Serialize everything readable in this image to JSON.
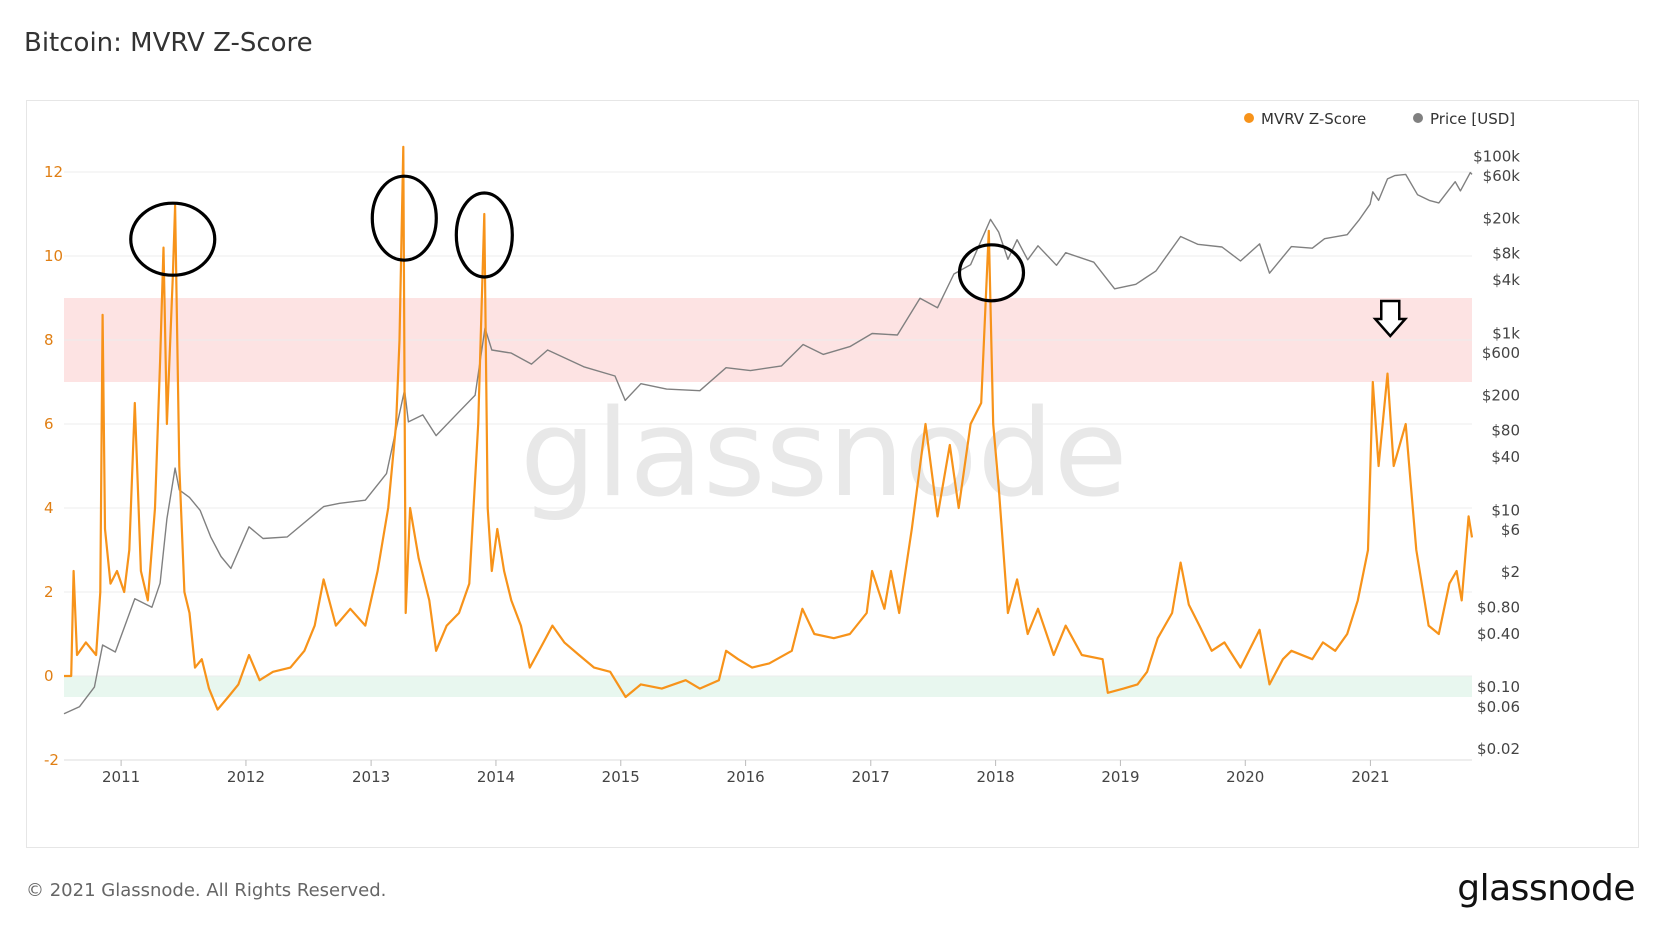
{
  "page": {
    "title": "Bitcoin: MVRV Z-Score",
    "footer": "© 2021 Glassnode. All Rights Reserved.",
    "brand": "glassnode",
    "watermark": "glassnode"
  },
  "chart_data": {
    "type": "line",
    "title": "Bitcoin: MVRV Z-Score",
    "xlabel": "",
    "ylabel": "",
    "x_range": [
      "2010-07-18",
      "2021-10-25"
    ],
    "x_ticks": [
      "2011",
      "2012",
      "2013",
      "2014",
      "2015",
      "2016",
      "2017",
      "2018",
      "2019",
      "2020",
      "2021"
    ],
    "y_left": {
      "range": [
        -2,
        13
      ],
      "ticks": [
        -2,
        0,
        2,
        4,
        6,
        8,
        10,
        12
      ],
      "color": "#f7931a"
    },
    "y_right": {
      "scale": "log",
      "range": [
        0.015,
        200000
      ],
      "ticks": [
        {
          "v": 0.02,
          "label": "$0.02"
        },
        {
          "v": 0.06,
          "label": "$0.06"
        },
        {
          "v": 0.1,
          "label": "$0.10"
        },
        {
          "v": 0.4,
          "label": "$0.40"
        },
        {
          "v": 0.8,
          "label": "$0.80"
        },
        {
          "v": 2,
          "label": "$2"
        },
        {
          "v": 6,
          "label": "$6"
        },
        {
          "v": 10,
          "label": "$10"
        },
        {
          "v": 40,
          "label": "$40"
        },
        {
          "v": 80,
          "label": "$80"
        },
        {
          "v": 200,
          "label": "$200"
        },
        {
          "v": 600,
          "label": "$600"
        },
        {
          "v": 1000,
          "label": "$1k"
        },
        {
          "v": 4000,
          "label": "$4k"
        },
        {
          "v": 8000,
          "label": "$8k"
        },
        {
          "v": 20000,
          "label": "$20k"
        },
        {
          "v": 60000,
          "label": "$60k"
        },
        {
          "v": 100000,
          "label": "$100k"
        }
      ]
    },
    "bands": [
      {
        "name": "",
        "from": 7,
        "to": 9,
        "color": "#fde3e3"
      },
      {
        "name": "",
        "from": -0.5,
        "to": 0,
        "color": "#e8f7ef"
      }
    ],
    "legend": {
      "placement": "top-right",
      "items": [
        {
          "label": "MVRV Z-Score",
          "color": "#f7931a"
        },
        {
          "label": "Price [USD]",
          "color": "#808080"
        }
      ]
    },
    "grid": true,
    "series": [
      {
        "name": "MVRV Z-Score",
        "axis": "left",
        "color": "#f7931a",
        "points": [
          [
            "2010-07-18",
            0
          ],
          [
            "2010-08-08",
            0
          ],
          [
            "2010-08-15",
            2.5
          ],
          [
            "2010-08-25",
            0.5
          ],
          [
            "2010-09-20",
            0.8
          ],
          [
            "2010-10-20",
            0.5
          ],
          [
            "2010-11-01",
            2.0
          ],
          [
            "2010-11-08",
            8.6
          ],
          [
            "2010-11-15",
            3.5
          ],
          [
            "2010-12-01",
            2.2
          ],
          [
            "2010-12-20",
            2.5
          ],
          [
            "2011-01-10",
            2.0
          ],
          [
            "2011-01-25",
            3.0
          ],
          [
            "2011-02-10",
            6.5
          ],
          [
            "2011-02-28",
            2.5
          ],
          [
            "2011-03-20",
            1.8
          ],
          [
            "2011-04-10",
            4.0
          ],
          [
            "2011-04-25",
            7.5
          ],
          [
            "2011-05-05",
            10.2
          ],
          [
            "2011-05-15",
            6.0
          ],
          [
            "2011-06-01",
            9.5
          ],
          [
            "2011-06-08",
            11.2
          ],
          [
            "2011-06-20",
            5.0
          ],
          [
            "2011-07-05",
            2.0
          ],
          [
            "2011-07-20",
            1.5
          ],
          [
            "2011-08-05",
            0.2
          ],
          [
            "2011-08-25",
            0.4
          ],
          [
            "2011-09-15",
            -0.3
          ],
          [
            "2011-10-10",
            -0.8
          ],
          [
            "2011-11-10",
            -0.5
          ],
          [
            "2011-12-10",
            -0.2
          ],
          [
            "2012-01-10",
            0.5
          ],
          [
            "2012-02-10",
            -0.1
          ],
          [
            "2012-03-20",
            0.1
          ],
          [
            "2012-05-10",
            0.2
          ],
          [
            "2012-06-20",
            0.6
          ],
          [
            "2012-07-20",
            1.2
          ],
          [
            "2012-08-15",
            2.3
          ],
          [
            "2012-09-20",
            1.2
          ],
          [
            "2012-11-01",
            1.6
          ],
          [
            "2012-12-15",
            1.2
          ],
          [
            "2013-01-20",
            2.5
          ],
          [
            "2013-02-20",
            4.0
          ],
          [
            "2013-03-15",
            6.0
          ],
          [
            "2013-03-25",
            8.0
          ],
          [
            "2013-04-05",
            12.6
          ],
          [
            "2013-04-12",
            1.5
          ],
          [
            "2013-04-25",
            4.0
          ],
          [
            "2013-05-20",
            2.8
          ],
          [
            "2013-06-20",
            1.8
          ],
          [
            "2013-07-10",
            0.6
          ],
          [
            "2013-08-10",
            1.2
          ],
          [
            "2013-09-15",
            1.5
          ],
          [
            "2013-10-15",
            2.2
          ],
          [
            "2013-11-10",
            6.0
          ],
          [
            "2013-11-28",
            11.0
          ],
          [
            "2013-12-08",
            4.0
          ],
          [
            "2013-12-20",
            2.5
          ],
          [
            "2014-01-05",
            3.5
          ],
          [
            "2014-01-25",
            2.5
          ],
          [
            "2014-02-15",
            1.8
          ],
          [
            "2014-03-15",
            1.2
          ],
          [
            "2014-04-10",
            0.2
          ],
          [
            "2014-05-20",
            0.8
          ],
          [
            "2014-06-15",
            1.2
          ],
          [
            "2014-07-20",
            0.8
          ],
          [
            "2014-09-01",
            0.5
          ],
          [
            "2014-10-15",
            0.2
          ],
          [
            "2014-12-01",
            0.1
          ],
          [
            "2015-01-15",
            -0.5
          ],
          [
            "2015-03-01",
            -0.2
          ],
          [
            "2015-05-01",
            -0.3
          ],
          [
            "2015-07-10",
            -0.1
          ],
          [
            "2015-08-20",
            -0.3
          ],
          [
            "2015-10-15",
            -0.1
          ],
          [
            "2015-11-05",
            0.6
          ],
          [
            "2015-12-10",
            0.4
          ],
          [
            "2016-01-20",
            0.2
          ],
          [
            "2016-03-10",
            0.3
          ],
          [
            "2016-05-15",
            0.6
          ],
          [
            "2016-06-15",
            1.6
          ],
          [
            "2016-07-20",
            1.0
          ],
          [
            "2016-09-15",
            0.9
          ],
          [
            "2016-11-01",
            1.0
          ],
          [
            "2016-12-20",
            1.5
          ],
          [
            "2017-01-05",
            2.5
          ],
          [
            "2017-02-10",
            1.6
          ],
          [
            "2017-03-01",
            2.5
          ],
          [
            "2017-03-25",
            1.5
          ],
          [
            "2017-05-01",
            3.5
          ],
          [
            "2017-06-10",
            6.0
          ],
          [
            "2017-07-15",
            3.8
          ],
          [
            "2017-08-20",
            5.5
          ],
          [
            "2017-09-15",
            4.0
          ],
          [
            "2017-10-20",
            6.0
          ],
          [
            "2017-11-20",
            6.5
          ],
          [
            "2017-12-12",
            10.6
          ],
          [
            "2017-12-25",
            6.0
          ],
          [
            "2018-01-10",
            4.5
          ],
          [
            "2018-02-06",
            1.5
          ],
          [
            "2018-03-05",
            2.3
          ],
          [
            "2018-04-05",
            1.0
          ],
          [
            "2018-05-05",
            1.6
          ],
          [
            "2018-06-20",
            0.5
          ],
          [
            "2018-07-25",
            1.2
          ],
          [
            "2018-09-10",
            0.5
          ],
          [
            "2018-11-10",
            0.4
          ],
          [
            "2018-11-25",
            -0.4
          ],
          [
            "2019-01-10",
            -0.3
          ],
          [
            "2019-02-20",
            -0.2
          ],
          [
            "2019-03-20",
            0.1
          ],
          [
            "2019-04-20",
            0.9
          ],
          [
            "2019-06-01",
            1.5
          ],
          [
            "2019-06-26",
            2.7
          ],
          [
            "2019-07-20",
            1.7
          ],
          [
            "2019-08-20",
            1.2
          ],
          [
            "2019-09-25",
            0.6
          ],
          [
            "2019-11-01",
            0.8
          ],
          [
            "2019-12-18",
            0.2
          ],
          [
            "2020-02-12",
            1.1
          ],
          [
            "2020-03-12",
            -0.2
          ],
          [
            "2020-04-20",
            0.4
          ],
          [
            "2020-05-15",
            0.6
          ],
          [
            "2020-07-15",
            0.4
          ],
          [
            "2020-08-15",
            0.8
          ],
          [
            "2020-09-20",
            0.6
          ],
          [
            "2020-10-25",
            1.0
          ],
          [
            "2020-11-25",
            1.8
          ],
          [
            "2020-12-25",
            3.0
          ],
          [
            "2021-01-08",
            7.0
          ],
          [
            "2021-01-25",
            5.0
          ],
          [
            "2021-02-20",
            7.2
          ],
          [
            "2021-03-10",
            5.0
          ],
          [
            "2021-04-14",
            6.0
          ],
          [
            "2021-05-15",
            3.0
          ],
          [
            "2021-06-20",
            1.2
          ],
          [
            "2021-07-20",
            1.0
          ],
          [
            "2021-08-20",
            2.2
          ],
          [
            "2021-09-10",
            2.5
          ],
          [
            "2021-09-25",
            1.8
          ],
          [
            "2021-10-15",
            3.8
          ],
          [
            "2021-10-25",
            3.3
          ]
        ]
      },
      {
        "name": "Price [USD]",
        "axis": "right",
        "color": "#808080",
        "points": [
          [
            "2010-07-18",
            0.05
          ],
          [
            "2010-09-01",
            0.06
          ],
          [
            "2010-10-15",
            0.1
          ],
          [
            "2010-11-08",
            0.3
          ],
          [
            "2010-12-15",
            0.25
          ],
          [
            "2011-02-10",
            1.0
          ],
          [
            "2011-04-01",
            0.8
          ],
          [
            "2011-04-25",
            1.5
          ],
          [
            "2011-05-15",
            8
          ],
          [
            "2011-06-08",
            30
          ],
          [
            "2011-06-20",
            17
          ],
          [
            "2011-07-20",
            14
          ],
          [
            "2011-08-20",
            10
          ],
          [
            "2011-09-20",
            5
          ],
          [
            "2011-10-20",
            3
          ],
          [
            "2011-11-18",
            2.2
          ],
          [
            "2012-01-10",
            6.5
          ],
          [
            "2012-02-20",
            4.8
          ],
          [
            "2012-05-01",
            5
          ],
          [
            "2012-08-15",
            11
          ],
          [
            "2012-10-01",
            12
          ],
          [
            "2012-12-15",
            13
          ],
          [
            "2013-02-15",
            26
          ],
          [
            "2013-04-09",
            230
          ],
          [
            "2013-04-20",
            100
          ],
          [
            "2013-06-01",
            120
          ],
          [
            "2013-07-10",
            70
          ],
          [
            "2013-09-15",
            130
          ],
          [
            "2013-11-01",
            200
          ],
          [
            "2013-11-30",
            1150
          ],
          [
            "2013-12-20",
            650
          ],
          [
            "2014-02-15",
            600
          ],
          [
            "2014-04-15",
            450
          ],
          [
            "2014-06-01",
            650
          ],
          [
            "2014-09-15",
            420
          ],
          [
            "2014-12-15",
            330
          ],
          [
            "2015-01-14",
            175
          ],
          [
            "2015-03-01",
            270
          ],
          [
            "2015-05-15",
            235
          ],
          [
            "2015-08-20",
            225
          ],
          [
            "2015-11-05",
            410
          ],
          [
            "2016-01-15",
            380
          ],
          [
            "2016-04-15",
            430
          ],
          [
            "2016-06-17",
            750
          ],
          [
            "2016-08-15",
            580
          ],
          [
            "2016-11-01",
            710
          ],
          [
            "2017-01-05",
            1000
          ],
          [
            "2017-03-20",
            960
          ],
          [
            "2017-05-25",
            2500
          ],
          [
            "2017-07-15",
            1950
          ],
          [
            "2017-09-01",
            4700
          ],
          [
            "2017-10-20",
            6000
          ],
          [
            "2017-12-17",
            19500
          ],
          [
            "2018-01-10",
            14000
          ],
          [
            "2018-02-06",
            6900
          ],
          [
            "2018-03-05",
            11500
          ],
          [
            "2018-04-05",
            6800
          ],
          [
            "2018-05-05",
            9800
          ],
          [
            "2018-06-28",
            5900
          ],
          [
            "2018-07-25",
            8200
          ],
          [
            "2018-10-15",
            6400
          ],
          [
            "2018-12-15",
            3200
          ],
          [
            "2019-02-15",
            3600
          ],
          [
            "2019-04-15",
            5100
          ],
          [
            "2019-06-26",
            12500
          ],
          [
            "2019-08-15",
            10200
          ],
          [
            "2019-10-25",
            9500
          ],
          [
            "2019-12-18",
            6600
          ],
          [
            "2020-02-12",
            10300
          ],
          [
            "2020-03-12",
            4800
          ],
          [
            "2020-05-15",
            9600
          ],
          [
            "2020-07-15",
            9200
          ],
          [
            "2020-08-20",
            11800
          ],
          [
            "2020-10-25",
            13100
          ],
          [
            "2020-11-30",
            19500
          ],
          [
            "2020-12-31",
            29000
          ],
          [
            "2021-01-08",
            40000
          ],
          [
            "2021-01-25",
            32000
          ],
          [
            "2021-02-20",
            56000
          ],
          [
            "2021-03-13",
            61000
          ],
          [
            "2021-04-14",
            63000
          ],
          [
            "2021-05-19",
            37000
          ],
          [
            "2021-06-22",
            32000
          ],
          [
            "2021-07-20",
            30000
          ],
          [
            "2021-09-06",
            52000
          ],
          [
            "2021-09-21",
            41000
          ],
          [
            "2021-10-20",
            66000
          ],
          [
            "2021-10-25",
            63000
          ]
        ]
      }
    ],
    "annotations": [
      {
        "type": "ellipse",
        "x": "2011-06-01",
        "y": 10.4
      },
      {
        "type": "ellipse",
        "x": "2013-04-08",
        "y": 10.9
      },
      {
        "type": "ellipse",
        "x": "2013-11-28",
        "y": 10.5
      },
      {
        "type": "ellipse",
        "x": "2017-12-20",
        "y": 9.6
      },
      {
        "type": "arrow-down",
        "x": "2021-02-28",
        "y": 8.5
      }
    ]
  }
}
